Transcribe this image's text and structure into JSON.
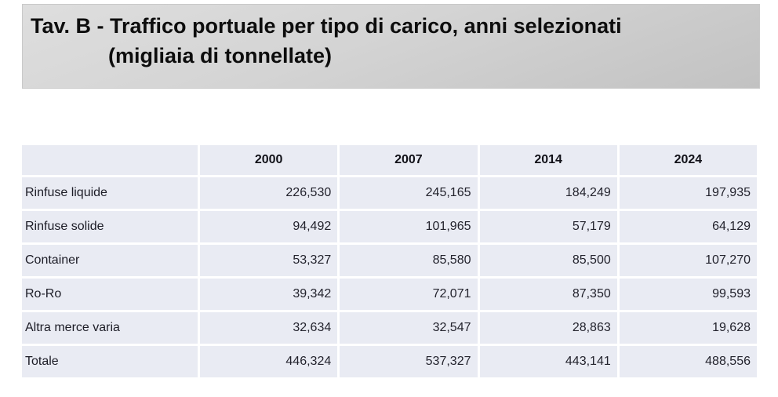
{
  "banner": {
    "title_line1": "Tav. B - Traffico portuale per tipo di carico, anni selezionati",
    "title_line2": "(migliaia di tonnellate)"
  },
  "table": {
    "columns": [
      "2000",
      "2007",
      "2014",
      "2024"
    ],
    "rows": [
      {
        "label": "Rinfuse liquide",
        "values": [
          "226,530",
          "245,165",
          "184,249",
          "197,935"
        ]
      },
      {
        "label": "Rinfuse solide",
        "values": [
          "94,492",
          "101,965",
          "57,179",
          "64,129"
        ]
      },
      {
        "label": "Container",
        "values": [
          "53,327",
          "85,580",
          "85,500",
          "107,270"
        ]
      },
      {
        "label": "Ro-Ro",
        "values": [
          "39,342",
          "72,071",
          "87,350",
          "99,593"
        ]
      },
      {
        "label": "Altra merce varia",
        "values": [
          "32,634",
          "32,547",
          "28,863",
          "19,628"
        ]
      },
      {
        "label": "Totale",
        "values": [
          "446,324",
          "537,327",
          "443,141",
          "488,556"
        ]
      }
    ]
  },
  "colors": {
    "cell_fill": "#e9ebf3",
    "banner_gradient_top": "#dedede",
    "banner_gradient_bottom": "#c2c2c2",
    "text": "#23232d"
  }
}
